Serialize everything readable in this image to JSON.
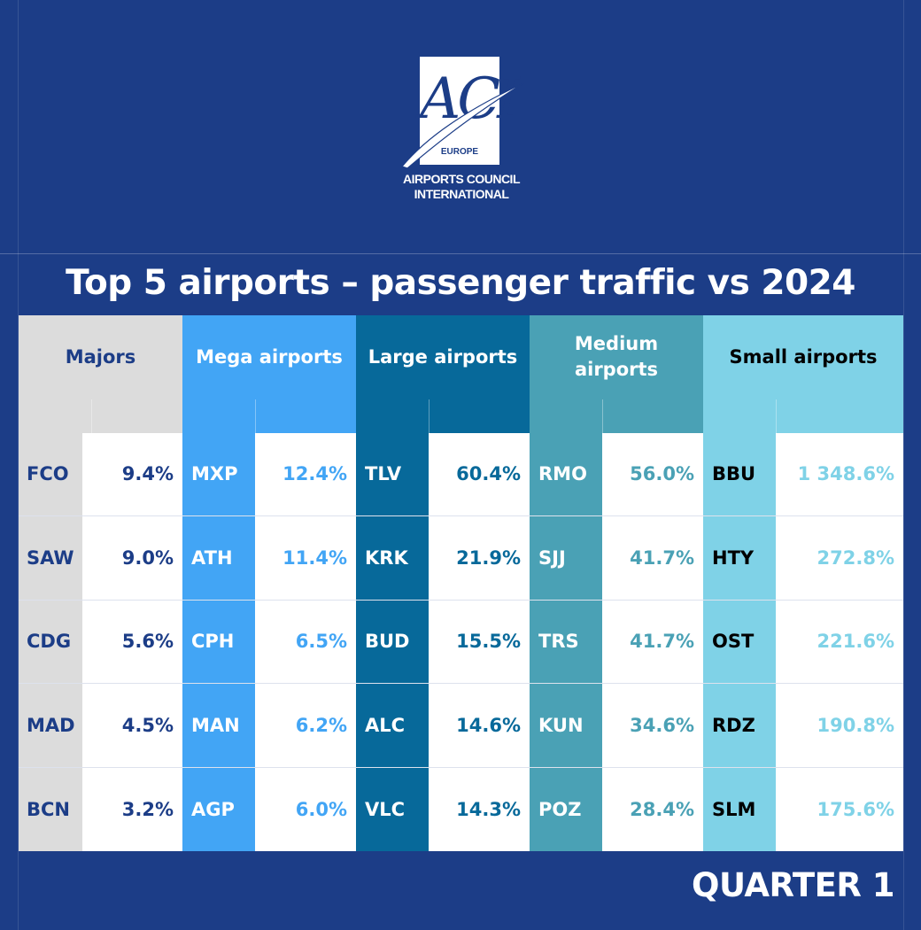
{
  "logo": {
    "mark": "ACI",
    "region": "EUROPE",
    "name_line1": "AIRPORTS COUNCIL",
    "name_line2": "INTERNATIONAL"
  },
  "title": "Top 5 airports – passenger traffic vs 2024",
  "footer": "QUARTER 1",
  "colors": {
    "background": "#1c3d87",
    "majors": "#dcdcdc",
    "mega": "#42a5f5",
    "large": "#07699a",
    "medium": "#4aa1b5",
    "small": "#7fd2e7"
  },
  "groups": [
    {
      "label": "Majors",
      "rows": [
        {
          "code": "FCO",
          "value": "9.4%"
        },
        {
          "code": "SAW",
          "value": "9.0%"
        },
        {
          "code": "CDG",
          "value": "5.6%"
        },
        {
          "code": "MAD",
          "value": "4.5%"
        },
        {
          "code": "BCN",
          "value": "3.2%"
        }
      ]
    },
    {
      "label": "Mega airports",
      "rows": [
        {
          "code": "MXP",
          "value": "12.4%"
        },
        {
          "code": "ATH",
          "value": "11.4%"
        },
        {
          "code": "CPH",
          "value": "6.5%"
        },
        {
          "code": "MAN",
          "value": "6.2%"
        },
        {
          "code": "AGP",
          "value": "6.0%"
        }
      ]
    },
    {
      "label": "Large airports",
      "rows": [
        {
          "code": "TLV",
          "value": "60.4%"
        },
        {
          "code": "KRK",
          "value": "21.9%"
        },
        {
          "code": "BUD",
          "value": "15.5%"
        },
        {
          "code": "ALC",
          "value": "14.6%"
        },
        {
          "code": "VLC",
          "value": "14.3%"
        }
      ]
    },
    {
      "label": "Medium airports",
      "rows": [
        {
          "code": "RMO",
          "value": "56.0%"
        },
        {
          "code": "SJJ",
          "value": "41.7%"
        },
        {
          "code": "TRS",
          "value": "41.7%"
        },
        {
          "code": "KUN",
          "value": "34.6%"
        },
        {
          "code": "POZ",
          "value": "28.4%"
        }
      ]
    },
    {
      "label": "Small airports",
      "rows": [
        {
          "code": "BBU",
          "value": "1 348.6%"
        },
        {
          "code": "HTY",
          "value": "272.8%"
        },
        {
          "code": "OST",
          "value": "221.6%"
        },
        {
          "code": "RDZ",
          "value": "190.8%"
        },
        {
          "code": "SLM",
          "value": "175.6%"
        }
      ]
    }
  ]
}
